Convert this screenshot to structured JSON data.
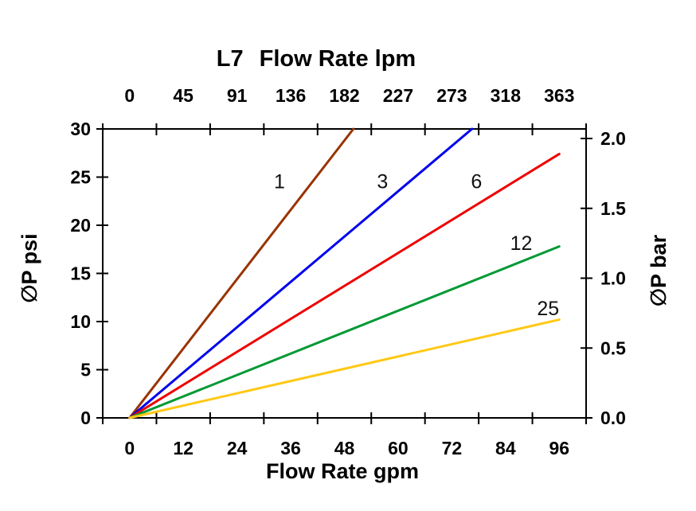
{
  "chart_data": {
    "type": "line",
    "model": "L7",
    "axes": {
      "top": {
        "title_model": "L7",
        "title": "Flow Rate lpm",
        "unit": "lpm",
        "ticks": [
          "0",
          "45",
          "91",
          "136",
          "182",
          "227",
          "273",
          "318",
          "363"
        ]
      },
      "bottom": {
        "title": "Flow Rate gpm",
        "unit": "gpm",
        "ticks": [
          "0",
          "12",
          "24",
          "36",
          "48",
          "60",
          "72",
          "84",
          "96"
        ],
        "tick_values_gpm": [
          0,
          12,
          24,
          36,
          48,
          60,
          72,
          84,
          96
        ]
      },
      "left": {
        "title": "∅P psi",
        "unit": "psi",
        "ticks": [
          "0",
          "5",
          "10",
          "15",
          "20",
          "25",
          "30"
        ],
        "range": [
          0,
          30
        ]
      },
      "right": {
        "title": "∅P bar",
        "unit": "bar",
        "ticks": [
          "0.0",
          "0.5",
          "1.0",
          "1.5",
          "2.0"
        ],
        "range": [
          0.0,
          2.07
        ]
      }
    },
    "grid": false,
    "legend": "inline-curve-labels",
    "series": [
      {
        "label": "1",
        "color": "#993300",
        "points_gpm_psi": [
          [
            0,
            0
          ],
          [
            50,
            30
          ]
        ],
        "label_pos_gpm_psi": [
          33.5,
          24.6
        ]
      },
      {
        "label": "3",
        "color": "#0000EE",
        "points_gpm_psi": [
          [
            0,
            0
          ],
          [
            76.5,
            30
          ]
        ],
        "label_pos_gpm_psi": [
          56.5,
          24.6
        ]
      },
      {
        "label": "6",
        "color": "#EE0000",
        "points_gpm_psi": [
          [
            0,
            0
          ],
          [
            96,
            27.4
          ]
        ],
        "label_pos_gpm_psi": [
          77.5,
          24.6
        ]
      },
      {
        "label": "12",
        "color": "#009933",
        "points_gpm_psi": [
          [
            0,
            0
          ],
          [
            96,
            17.8
          ]
        ],
        "label_pos_gpm_psi": [
          87.5,
          18.2
        ]
      },
      {
        "label": "25",
        "color": "#FFC814",
        "points_gpm_psi": [
          [
            0,
            0
          ],
          [
            96,
            10.2
          ]
        ],
        "label_pos_gpm_psi": [
          93.5,
          11.4
        ]
      }
    ],
    "colors": {
      "axis": "#000000",
      "background": "#FFFFFF"
    }
  }
}
